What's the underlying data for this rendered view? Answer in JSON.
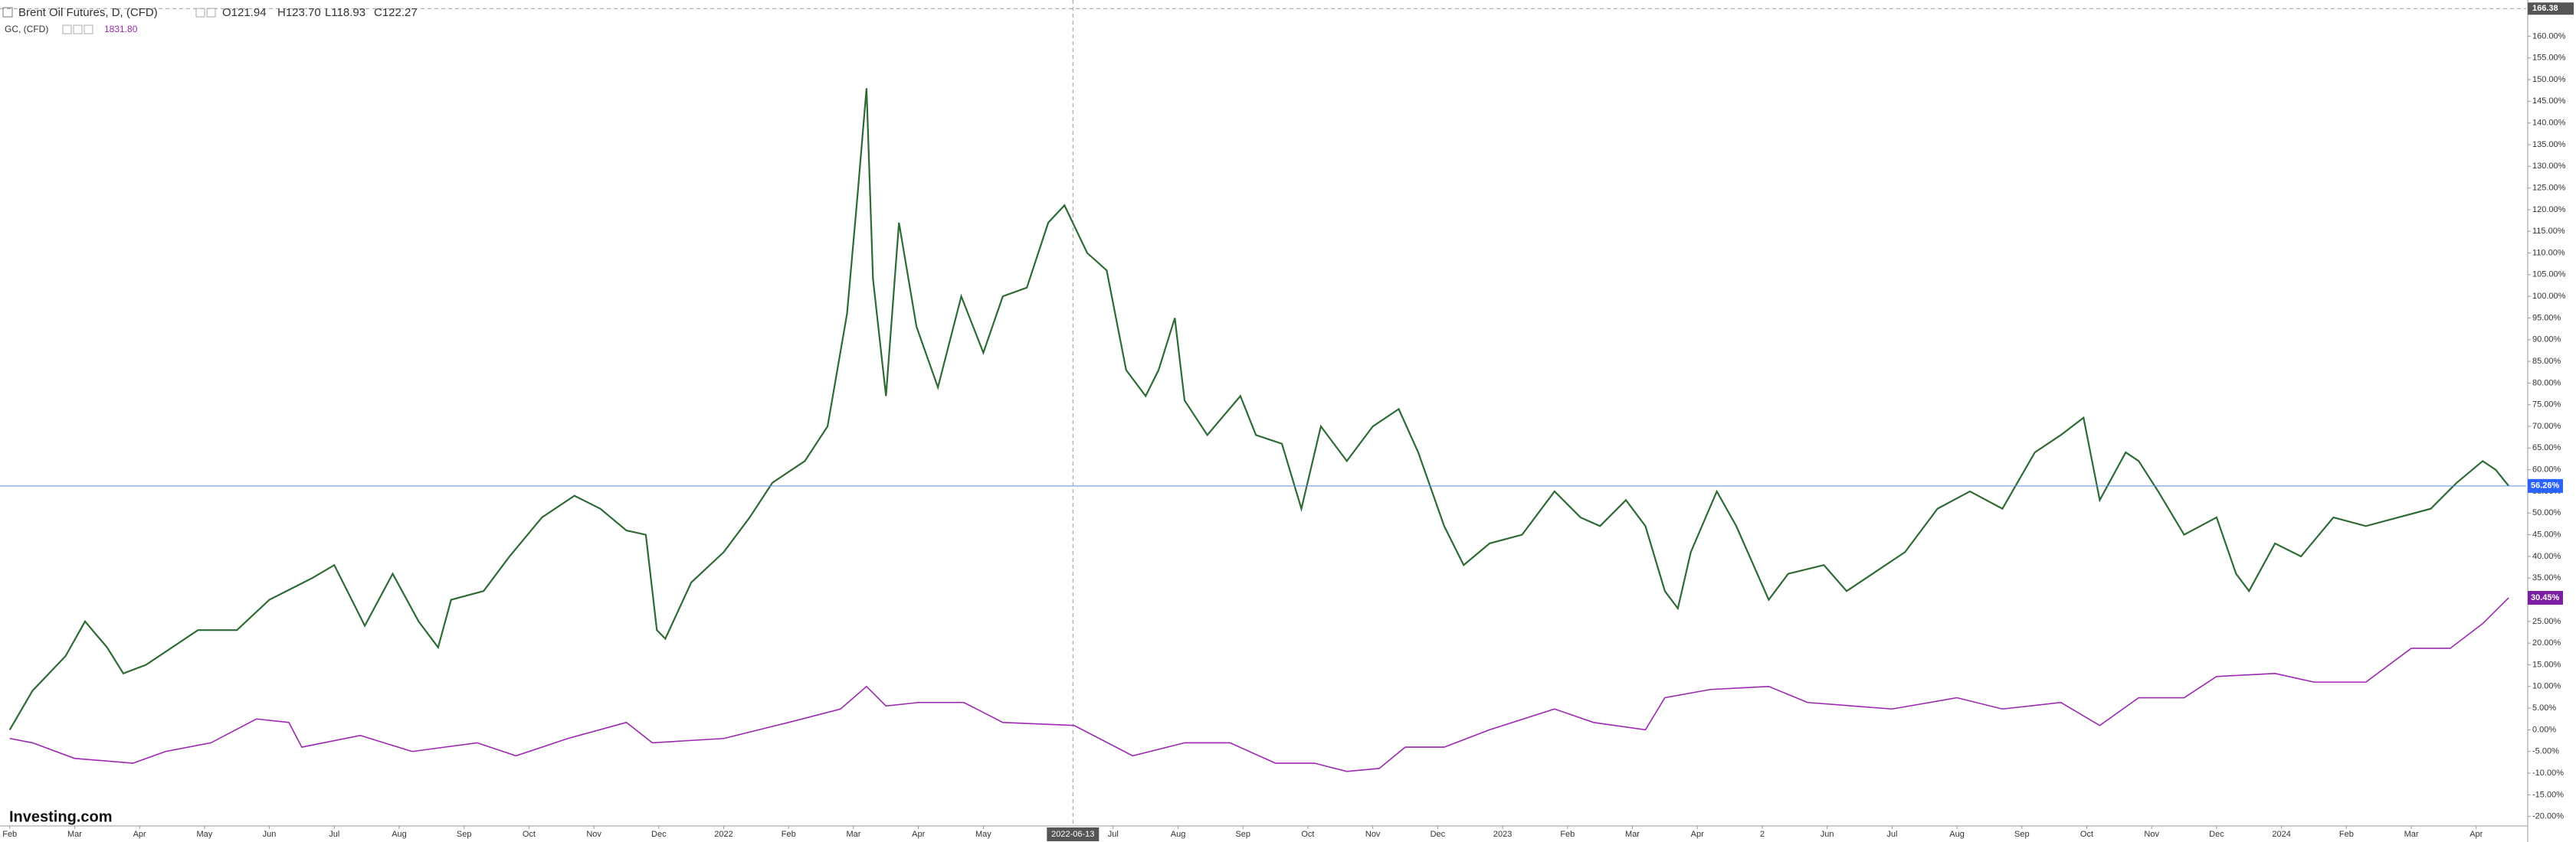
{
  "chart_data": {
    "type": "line",
    "header": {
      "symbol": "Brent Oil Futures, D, (CFD)",
      "open": "O121.94",
      "high": "H123.70",
      "low": "L118.93",
      "close": "C122.27",
      "compare_symbol": "GC, (CFD)",
      "compare_value": "1831.80"
    },
    "logo": "Investing.com",
    "crosshair": {
      "x": 16.38,
      "x_label": "2022-06-13",
      "y": 166.38,
      "y_label": "166.38"
    },
    "xlim": [
      -0.15,
      38.77
    ],
    "ylim": [
      -22,
      166.6
    ],
    "grid": false,
    "xticks": [
      {
        "value": 0,
        "label": "Feb"
      },
      {
        "value": 1,
        "label": "Mar"
      },
      {
        "value": 2,
        "label": "Apr"
      },
      {
        "value": 3,
        "label": "May"
      },
      {
        "value": 4,
        "label": "Jun"
      },
      {
        "value": 5,
        "label": "Jul"
      },
      {
        "value": 6,
        "label": "Aug"
      },
      {
        "value": 7,
        "label": "Sep"
      },
      {
        "value": 8,
        "label": "Oct"
      },
      {
        "value": 9,
        "label": "Nov"
      },
      {
        "value": 10,
        "label": "Dec"
      },
      {
        "value": 11,
        "label": "2022"
      },
      {
        "value": 12,
        "label": "Feb"
      },
      {
        "value": 13,
        "label": "Mar"
      },
      {
        "value": 14,
        "label": "Apr"
      },
      {
        "value": 15,
        "label": "May"
      },
      {
        "value": 17,
        "label": "Jul"
      },
      {
        "value": 18,
        "label": "Aug"
      },
      {
        "value": 19,
        "label": "Sep"
      },
      {
        "value": 20,
        "label": "Oct"
      },
      {
        "value": 21,
        "label": "Nov"
      },
      {
        "value": 22,
        "label": "Dec"
      },
      {
        "value": 23,
        "label": "2023"
      },
      {
        "value": 24,
        "label": "Feb"
      },
      {
        "value": 25,
        "label": "Mar"
      },
      {
        "value": 26,
        "label": "Apr"
      },
      {
        "value": 27,
        "label": "2"
      },
      {
        "value": 28,
        "label": "Jun"
      },
      {
        "value": 29,
        "label": "Jul"
      },
      {
        "value": 30,
        "label": "Aug"
      },
      {
        "value": 31,
        "label": "Sep"
      },
      {
        "value": 32,
        "label": "Oct"
      },
      {
        "value": 33,
        "label": "Nov"
      },
      {
        "value": 34,
        "label": "Dec"
      },
      {
        "value": 35,
        "label": "2024"
      },
      {
        "value": 36,
        "label": "Feb"
      },
      {
        "value": 37,
        "label": "Mar"
      },
      {
        "value": 38,
        "label": "Apr"
      }
    ],
    "yticks": [
      {
        "value": -20,
        "label": "-20.00%"
      },
      {
        "value": -15,
        "label": "-15.00%"
      },
      {
        "value": -10,
        "label": "-10.00%"
      },
      {
        "value": -5,
        "label": "-5.00%"
      },
      {
        "value": 0,
        "label": "0.00%"
      },
      {
        "value": 5,
        "label": "5.00%"
      },
      {
        "value": 10,
        "label": "10.00%"
      },
      {
        "value": 15,
        "label": "15.00%"
      },
      {
        "value": 20,
        "label": "20.00%"
      },
      {
        "value": 25,
        "label": "25.00%"
      },
      {
        "value": 30,
        "label": "30.00%"
      },
      {
        "value": 35,
        "label": "35.00%"
      },
      {
        "value": 40,
        "label": "40.00%"
      },
      {
        "value": 45,
        "label": "45.00%"
      },
      {
        "value": 50,
        "label": "50.00%"
      },
      {
        "value": 55,
        "label": "55.00%"
      },
      {
        "value": 60,
        "label": "60.00%"
      },
      {
        "value": 65,
        "label": "65.00%"
      },
      {
        "value": 70,
        "label": "70.00%"
      },
      {
        "value": 75,
        "label": "75.00%"
      },
      {
        "value": 80,
        "label": "80.00%"
      },
      {
        "value": 85,
        "label": "85.00%"
      },
      {
        "value": 90,
        "label": "90.00%"
      },
      {
        "value": 95,
        "label": "95.00%"
      },
      {
        "value": 100,
        "label": "100.00%"
      },
      {
        "value": 105,
        "label": "105.00%"
      },
      {
        "value": 110,
        "label": "110.00%"
      },
      {
        "value": 115,
        "label": "115.00%"
      },
      {
        "value": 120,
        "label": "120.00%"
      },
      {
        "value": 125,
        "label": "125.00%"
      },
      {
        "value": 130,
        "label": "130.00%"
      },
      {
        "value": 135,
        "label": "135.00%"
      },
      {
        "value": 140,
        "label": "140.00%"
      },
      {
        "value": 145,
        "label": "145.00%"
      },
      {
        "value": 150,
        "label": "150.00%"
      },
      {
        "value": 155,
        "label": "155.00%"
      },
      {
        "value": 160,
        "label": "160.00%"
      }
    ],
    "series": [
      {
        "name": "Brent Oil Futures",
        "color": "#2e6b34",
        "badge_color": "#2962ff",
        "last_label": "56.26%",
        "x": [
          0,
          0.35,
          0.86,
          1.16,
          1.5,
          1.75,
          2.1,
          2.9,
          3.5,
          4.0,
          4.66,
          5.0,
          5.47,
          5.9,
          6.3,
          6.6,
          6.8,
          7.3,
          7.7,
          8.2,
          8.7,
          9.1,
          9.5,
          9.8,
          9.97,
          10.1,
          10.5,
          11.0,
          11.4,
          11.75,
          12.25,
          12.6,
          12.9,
          13.06,
          13.2,
          13.3,
          13.5,
          13.7,
          13.97,
          14.3,
          14.66,
          15.0,
          15.3,
          15.67,
          16.0,
          16.25,
          16.6,
          16.9,
          17.2,
          17.5,
          17.7,
          17.95,
          18.1,
          18.45,
          18.96,
          19.2,
          19.6,
          19.9,
          20.2,
          20.6,
          21.0,
          21.4,
          21.7,
          22.1,
          22.4,
          22.8,
          23.3,
          23.8,
          24.2,
          24.5,
          24.9,
          25.2,
          25.5,
          25.7,
          25.9,
          26.3,
          26.6,
          27.1,
          27.4,
          27.95,
          28.3,
          28.7,
          29.2,
          29.7,
          30.2,
          30.7,
          31.2,
          31.6,
          31.95,
          32.2,
          32.6,
          32.8,
          33.1,
          33.5,
          34.0,
          34.3,
          34.5,
          34.9,
          35.3,
          35.8,
          36.3,
          36.8,
          37.3,
          37.7,
          38.1,
          38.3,
          38.5
        ],
        "values": [
          0,
          9,
          17,
          25,
          19,
          13,
          15,
          23,
          23,
          30,
          35,
          38,
          24,
          36,
          25,
          19,
          30,
          32,
          40,
          49,
          54,
          51,
          46,
          45,
          23,
          21,
          34,
          41,
          49,
          57,
          62,
          70,
          96,
          123,
          148,
          104,
          77,
          117,
          93,
          79,
          100,
          87,
          100,
          102,
          117,
          121,
          110,
          106,
          83,
          77,
          83,
          95,
          76,
          68,
          77,
          68,
          66,
          51,
          70,
          62,
          70,
          74,
          64,
          47,
          38,
          43,
          45,
          55,
          49,
          47,
          53,
          47,
          32,
          28,
          41,
          55,
          47,
          30,
          36,
          38,
          32,
          36,
          41,
          51,
          55,
          51,
          64,
          68,
          72,
          53,
          64,
          62,
          55,
          45,
          49,
          36,
          32,
          43,
          40,
          49,
          47,
          49,
          51,
          57,
          62,
          60,
          56.26
        ]
      },
      {
        "name": "GC, (CFD)",
        "color": "#9c27b0",
        "badge_color": "#7b1fa2",
        "last_label": "30.45%",
        "x": [
          0,
          0.35,
          1,
          1.9,
          2.4,
          3.1,
          3.8,
          4.3,
          4.5,
          5.4,
          6.2,
          7.2,
          7.8,
          8.6,
          9.5,
          9.9,
          11,
          12,
          12.8,
          13.2,
          13.5,
          14,
          14.7,
          15.3,
          16.4,
          17.3,
          18.1,
          18.8,
          19.5,
          20.1,
          20.6,
          21.1,
          21.5,
          22.1,
          22.8,
          23.8,
          24.4,
          25.2,
          25.5,
          26.2,
          27.1,
          27.7,
          29,
          30,
          30.7,
          31.6,
          32.2,
          32.8,
          33.5,
          34,
          34.9,
          35.5,
          36.3,
          37,
          37.6,
          38.1,
          38.5
        ],
        "values": [
          -2,
          -3,
          -6.6,
          -7.7,
          -5,
          -3,
          2.5,
          1.7,
          -4,
          -1.3,
          -5,
          -3,
          -6,
          -2,
          1.7,
          -3,
          -2,
          1.7,
          4.8,
          10,
          5.5,
          6.3,
          6.3,
          1.7,
          1,
          -6,
          -3,
          -3,
          -7.7,
          -7.7,
          -9.6,
          -8.9,
          -4,
          -4,
          0,
          4.8,
          1.7,
          0,
          7.4,
          9.3,
          10,
          6.3,
          4.8,
          7.4,
          4.8,
          6.3,
          1,
          7.4,
          7.4,
          12.3,
          13,
          11,
          11,
          18.8,
          18.8,
          24.5,
          30.45
        ]
      }
    ]
  }
}
